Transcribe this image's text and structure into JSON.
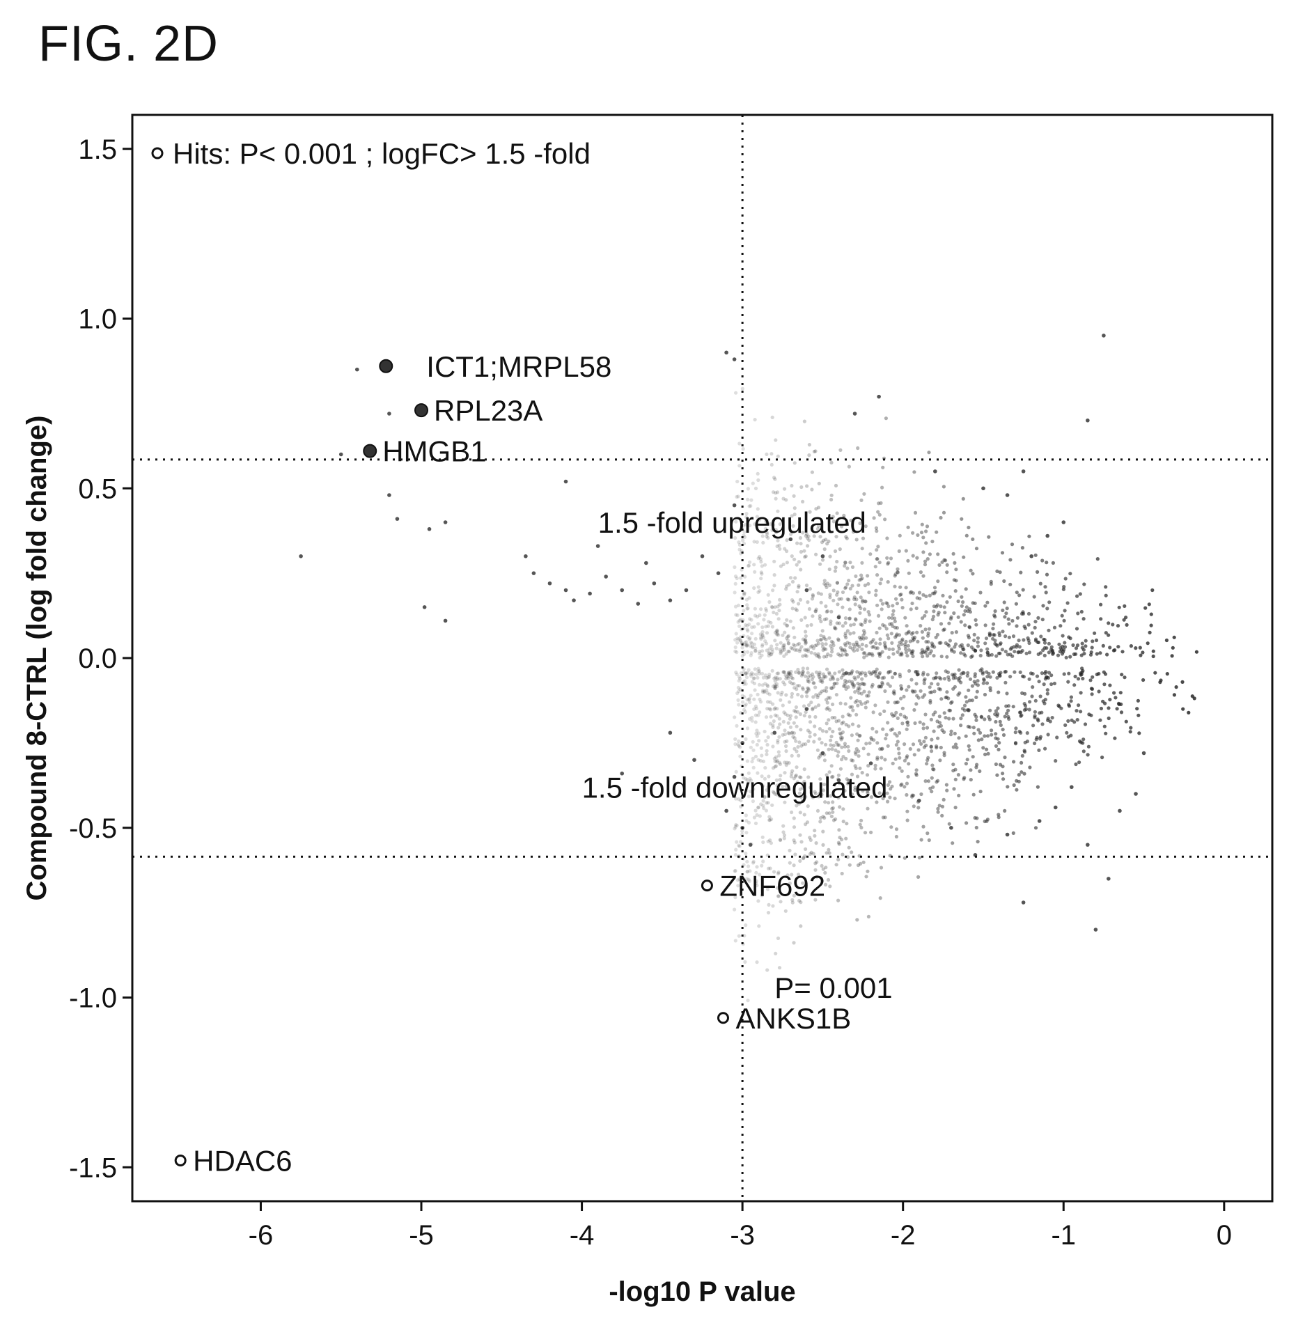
{
  "figure_title": "FIG. 2D",
  "chart_data": {
    "type": "scatter",
    "title": "",
    "xlabel": "-log10 P value",
    "ylabel": "Compound 8-CTRL (log fold change)",
    "xlim": [
      -6.8,
      0.3
    ],
    "ylim": [
      -1.6,
      1.6
    ],
    "x_ticks": [
      -6,
      -5,
      -4,
      -3,
      -2,
      -1,
      0
    ],
    "x_tick_labels": [
      "-6",
      "-5",
      "-4",
      "-3",
      "-2",
      "-1",
      "0"
    ],
    "y_ticks": [
      1.5,
      1.0,
      0.5,
      0.0,
      -0.5,
      -1.0,
      -1.5
    ],
    "y_tick_labels": [
      "1.5",
      "1.0",
      "0.5",
      "0.0",
      "-0.5",
      "-1.0",
      "-1.5"
    ],
    "grid": false,
    "legend": {
      "position": "top-left",
      "entries": [
        "Hits: P< 0.001 ; logFC> 1.5 -fold"
      ]
    },
    "threshold_lines": [
      {
        "orientation": "vertical",
        "x": -3
      },
      {
        "orientation": "horizontal",
        "y": 0.585
      },
      {
        "orientation": "horizontal",
        "y": -0.585
      }
    ],
    "annotations": [
      {
        "text": "1.5 -fold upregulated",
        "x": -3.9,
        "y": 0.4
      },
      {
        "text": "1.5 -fold downregulated",
        "x": -4.0,
        "y": -0.38
      },
      {
        "text": "P= 0.001",
        "x": -2.8,
        "y": -0.97
      }
    ],
    "hits": [
      {
        "label": "ICT1;MRPL58",
        "x": -5.22,
        "y": 0.86,
        "filled": true
      },
      {
        "label": "RPL23A",
        "x": -5.0,
        "y": 0.73,
        "filled": true
      },
      {
        "label": "HMGB1",
        "x": -5.32,
        "y": 0.61,
        "filled": true
      },
      {
        "label": "ZNF692",
        "x": -3.22,
        "y": -0.67,
        "filled": false
      },
      {
        "label": "ANKS1B",
        "x": -3.12,
        "y": -1.06,
        "filled": false
      },
      {
        "label": "HDAC6",
        "x": -6.5,
        "y": -1.48,
        "filled": false
      }
    ],
    "background_points": [
      [
        -5.4,
        0.85
      ],
      [
        -5.2,
        0.72
      ],
      [
        -5.5,
        0.6
      ],
      [
        -5.2,
        0.48
      ],
      [
        -5.15,
        0.41
      ],
      [
        -5.75,
        0.3
      ],
      [
        -4.95,
        0.38
      ],
      [
        -4.85,
        0.4
      ],
      [
        -4.98,
        0.15
      ],
      [
        -4.85,
        0.11
      ],
      [
        -4.1,
        0.52
      ],
      [
        -3.9,
        0.33
      ],
      [
        -3.6,
        0.28
      ],
      [
        -4.35,
        0.3
      ],
      [
        -4.3,
        0.25
      ],
      [
        -4.2,
        0.22
      ],
      [
        -4.1,
        0.2
      ],
      [
        -4.05,
        0.17
      ],
      [
        -3.95,
        0.19
      ],
      [
        -3.85,
        0.24
      ],
      [
        -3.75,
        0.2
      ],
      [
        -3.65,
        0.16
      ],
      [
        -3.55,
        0.22
      ],
      [
        -3.45,
        0.17
      ],
      [
        -3.35,
        0.2
      ],
      [
        -3.25,
        0.3
      ],
      [
        -3.15,
        0.25
      ],
      [
        -3.05,
        0.45
      ],
      [
        -3.1,
        0.9
      ],
      [
        -3.05,
        0.88
      ],
      [
        -2.3,
        0.72
      ],
      [
        -2.15,
        0.77
      ],
      [
        -1.8,
        0.55
      ],
      [
        -1.5,
        0.5
      ],
      [
        -1.35,
        0.48
      ],
      [
        -1.25,
        0.55
      ],
      [
        -0.85,
        0.7
      ],
      [
        -0.75,
        0.95
      ],
      [
        -1.0,
        0.4
      ],
      [
        -1.1,
        0.36
      ],
      [
        -1.2,
        0.3
      ],
      [
        -2.7,
        0.35
      ],
      [
        -2.5,
        0.3
      ],
      [
        -2.4,
        0.12
      ],
      [
        -2.6,
        0.2
      ],
      [
        -3.0,
        -0.5
      ],
      [
        -3.05,
        -0.35
      ],
      [
        -3.1,
        -0.45
      ],
      [
        -2.95,
        -0.55
      ],
      [
        -3.0,
        -0.25
      ],
      [
        -2.8,
        -0.22
      ],
      [
        -2.6,
        -0.15
      ],
      [
        -2.5,
        -0.28
      ],
      [
        -2.4,
        -0.36
      ],
      [
        -2.2,
        -0.31
      ],
      [
        -1.9,
        -0.42
      ],
      [
        -1.7,
        -0.5
      ],
      [
        -1.55,
        -0.58
      ],
      [
        -1.35,
        -0.52
      ],
      [
        -1.25,
        -0.72
      ],
      [
        -1.15,
        -0.48
      ],
      [
        -1.05,
        -0.44
      ],
      [
        -0.95,
        -0.38
      ],
      [
        -0.85,
        -0.55
      ],
      [
        -0.8,
        -0.8
      ],
      [
        -0.72,
        -0.65
      ],
      [
        -0.65,
        -0.45
      ],
      [
        -0.55,
        -0.4
      ],
      [
        -0.5,
        -0.28
      ],
      [
        -3.75,
        -0.34
      ],
      [
        -3.45,
        -0.22
      ],
      [
        -3.3,
        -0.3
      ]
    ]
  }
}
